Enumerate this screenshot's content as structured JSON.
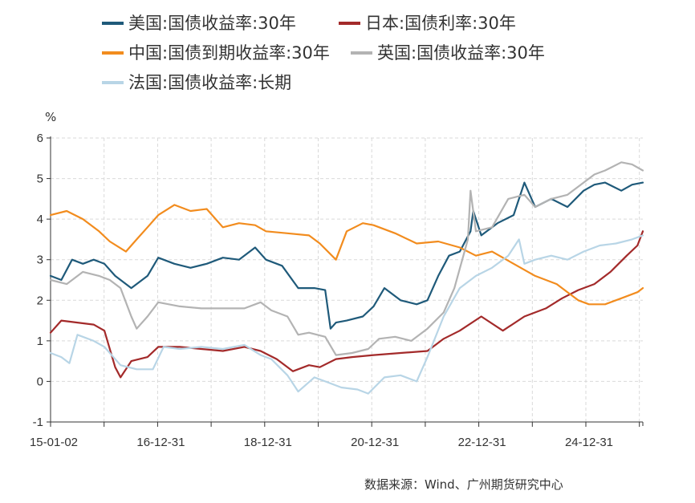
{
  "chart_data": {
    "type": "line",
    "unit": "%",
    "ylim": [
      -1,
      6
    ],
    "y_ticks": [
      -1,
      0,
      1,
      2,
      3,
      4,
      5,
      6
    ],
    "x_tick_labels": [
      "15-01-02",
      "16-12-31",
      "18-12-31",
      "20-12-31",
      "22-12-31",
      "24-12-31"
    ],
    "x_range": [
      2015.0,
      2026.0
    ],
    "grid": true,
    "legend_position": "top",
    "series": [
      {
        "name": "美国:国债收益率:30年",
        "color": "#1f5a7a",
        "x": [
          2015.0,
          2015.2,
          2015.4,
          2015.6,
          2015.8,
          2016.0,
          2016.2,
          2016.5,
          2016.8,
          2017.0,
          2017.3,
          2017.6,
          2017.9,
          2018.2,
          2018.5,
          2018.8,
          2019.0,
          2019.3,
          2019.6,
          2019.9,
          2020.1,
          2020.2,
          2020.3,
          2020.5,
          2020.8,
          2021.0,
          2021.2,
          2021.5,
          2021.8,
          2022.0,
          2022.2,
          2022.4,
          2022.6,
          2022.8,
          2022.85,
          2023.0,
          2023.3,
          2023.6,
          2023.8,
          2024.0,
          2024.3,
          2024.6,
          2024.9,
          2025.1,
          2025.3,
          2025.6,
          2025.8,
          2026.0
        ],
        "values": [
          2.6,
          2.5,
          3.0,
          2.9,
          3.0,
          2.9,
          2.6,
          2.3,
          2.6,
          3.05,
          2.9,
          2.8,
          2.9,
          3.05,
          3.0,
          3.3,
          3.0,
          2.85,
          2.3,
          2.3,
          2.25,
          1.3,
          1.45,
          1.5,
          1.6,
          1.85,
          2.3,
          2.0,
          1.9,
          2.0,
          2.6,
          3.1,
          3.2,
          3.7,
          4.2,
          3.6,
          3.9,
          4.1,
          4.9,
          4.3,
          4.5,
          4.3,
          4.7,
          4.85,
          4.9,
          4.7,
          4.85,
          4.9
        ]
      },
      {
        "name": "日本:国债利率:30年",
        "color": "#a32a2a",
        "x": [
          2015.0,
          2015.2,
          2015.5,
          2015.8,
          2016.0,
          2016.2,
          2016.3,
          2016.5,
          2016.8,
          2017.0,
          2017.4,
          2017.8,
          2018.2,
          2018.6,
          2018.9,
          2019.2,
          2019.5,
          2019.8,
          2020.0,
          2020.3,
          2020.6,
          2021.0,
          2021.5,
          2022.0,
          2022.3,
          2022.6,
          2023.0,
          2023.4,
          2023.8,
          2024.2,
          2024.5,
          2024.8,
          2025.1,
          2025.4,
          2025.7,
          2025.9,
          2026.0
        ],
        "values": [
          1.2,
          1.5,
          1.45,
          1.4,
          1.25,
          0.35,
          0.1,
          0.5,
          0.6,
          0.85,
          0.85,
          0.8,
          0.75,
          0.85,
          0.75,
          0.55,
          0.25,
          0.4,
          0.35,
          0.55,
          0.6,
          0.65,
          0.7,
          0.75,
          1.05,
          1.25,
          1.6,
          1.25,
          1.6,
          1.8,
          2.05,
          2.25,
          2.4,
          2.7,
          3.1,
          3.35,
          3.7
        ]
      },
      {
        "name": "中国:国债到期收益率:30年",
        "color": "#f28c1e",
        "x": [
          2015.0,
          2015.3,
          2015.6,
          2015.9,
          2016.1,
          2016.4,
          2016.6,
          2016.8,
          2017.0,
          2017.3,
          2017.6,
          2017.9,
          2018.2,
          2018.5,
          2018.8,
          2019.0,
          2019.4,
          2019.8,
          2020.0,
          2020.3,
          2020.5,
          2020.8,
          2021.0,
          2021.4,
          2021.8,
          2022.2,
          2022.6,
          2022.9,
          2023.2,
          2023.6,
          2024.0,
          2024.4,
          2024.6,
          2024.8,
          2025.0,
          2025.3,
          2025.6,
          2025.9,
          2026.0
        ],
        "values": [
          4.1,
          4.2,
          4.0,
          3.7,
          3.45,
          3.2,
          3.5,
          3.8,
          4.1,
          4.35,
          4.2,
          4.25,
          3.8,
          3.9,
          3.85,
          3.7,
          3.65,
          3.6,
          3.4,
          3.0,
          3.7,
          3.9,
          3.85,
          3.65,
          3.4,
          3.45,
          3.3,
          3.1,
          3.2,
          2.9,
          2.6,
          2.4,
          2.2,
          2.0,
          1.9,
          1.9,
          2.05,
          2.2,
          2.3
        ]
      },
      {
        "name": "英国:国债收益率:30年",
        "color": "#b3b3b3",
        "x": [
          2015.0,
          2015.3,
          2015.6,
          2015.9,
          2016.1,
          2016.3,
          2016.5,
          2016.6,
          2016.8,
          2017.0,
          2017.4,
          2017.8,
          2018.2,
          2018.6,
          2018.9,
          2019.1,
          2019.4,
          2019.6,
          2019.8,
          2020.1,
          2020.3,
          2020.6,
          2020.9,
          2021.1,
          2021.4,
          2021.7,
          2022.0,
          2022.3,
          2022.5,
          2022.75,
          2022.8,
          2022.9,
          2023.2,
          2023.5,
          2023.8,
          2024.0,
          2024.3,
          2024.6,
          2024.9,
          2025.1,
          2025.3,
          2025.6,
          2025.8,
          2026.0
        ],
        "values": [
          2.5,
          2.4,
          2.7,
          2.6,
          2.5,
          2.3,
          1.6,
          1.3,
          1.6,
          1.95,
          1.85,
          1.8,
          1.8,
          1.8,
          1.95,
          1.75,
          1.6,
          1.15,
          1.2,
          1.1,
          0.65,
          0.7,
          0.8,
          1.05,
          1.1,
          1.0,
          1.3,
          1.7,
          2.3,
          3.5,
          4.7,
          3.7,
          3.8,
          4.5,
          4.6,
          4.3,
          4.5,
          4.6,
          4.9,
          5.1,
          5.2,
          5.4,
          5.35,
          5.2
        ]
      },
      {
        "name": "法国:国债收益率:长期",
        "color": "#b8d5e6",
        "x": [
          2015.0,
          2015.2,
          2015.35,
          2015.5,
          2015.8,
          2016.0,
          2016.3,
          2016.6,
          2016.9,
          2017.1,
          2017.4,
          2017.8,
          2018.2,
          2018.6,
          2018.9,
          2019.1,
          2019.4,
          2019.6,
          2019.9,
          2020.1,
          2020.4,
          2020.7,
          2020.9,
          2021.2,
          2021.5,
          2021.8,
          2022.0,
          2022.3,
          2022.6,
          2022.9,
          2023.2,
          2023.5,
          2023.7,
          2023.8,
          2024.0,
          2024.3,
          2024.6,
          2024.9,
          2025.2,
          2025.5,
          2025.8,
          2026.0
        ],
        "values": [
          0.7,
          0.6,
          0.45,
          1.15,
          1.0,
          0.85,
          0.4,
          0.3,
          0.3,
          0.85,
          0.8,
          0.85,
          0.8,
          0.9,
          0.65,
          0.55,
          0.15,
          -0.25,
          0.1,
          0.0,
          -0.15,
          -0.2,
          -0.3,
          0.1,
          0.15,
          0.0,
          0.6,
          1.6,
          2.3,
          2.6,
          2.8,
          3.1,
          3.5,
          2.9,
          3.0,
          3.1,
          3.0,
          3.2,
          3.35,
          3.4,
          3.5,
          3.6
        ]
      }
    ]
  },
  "source_note": "数据来源：Wind、广州期货研究中心"
}
